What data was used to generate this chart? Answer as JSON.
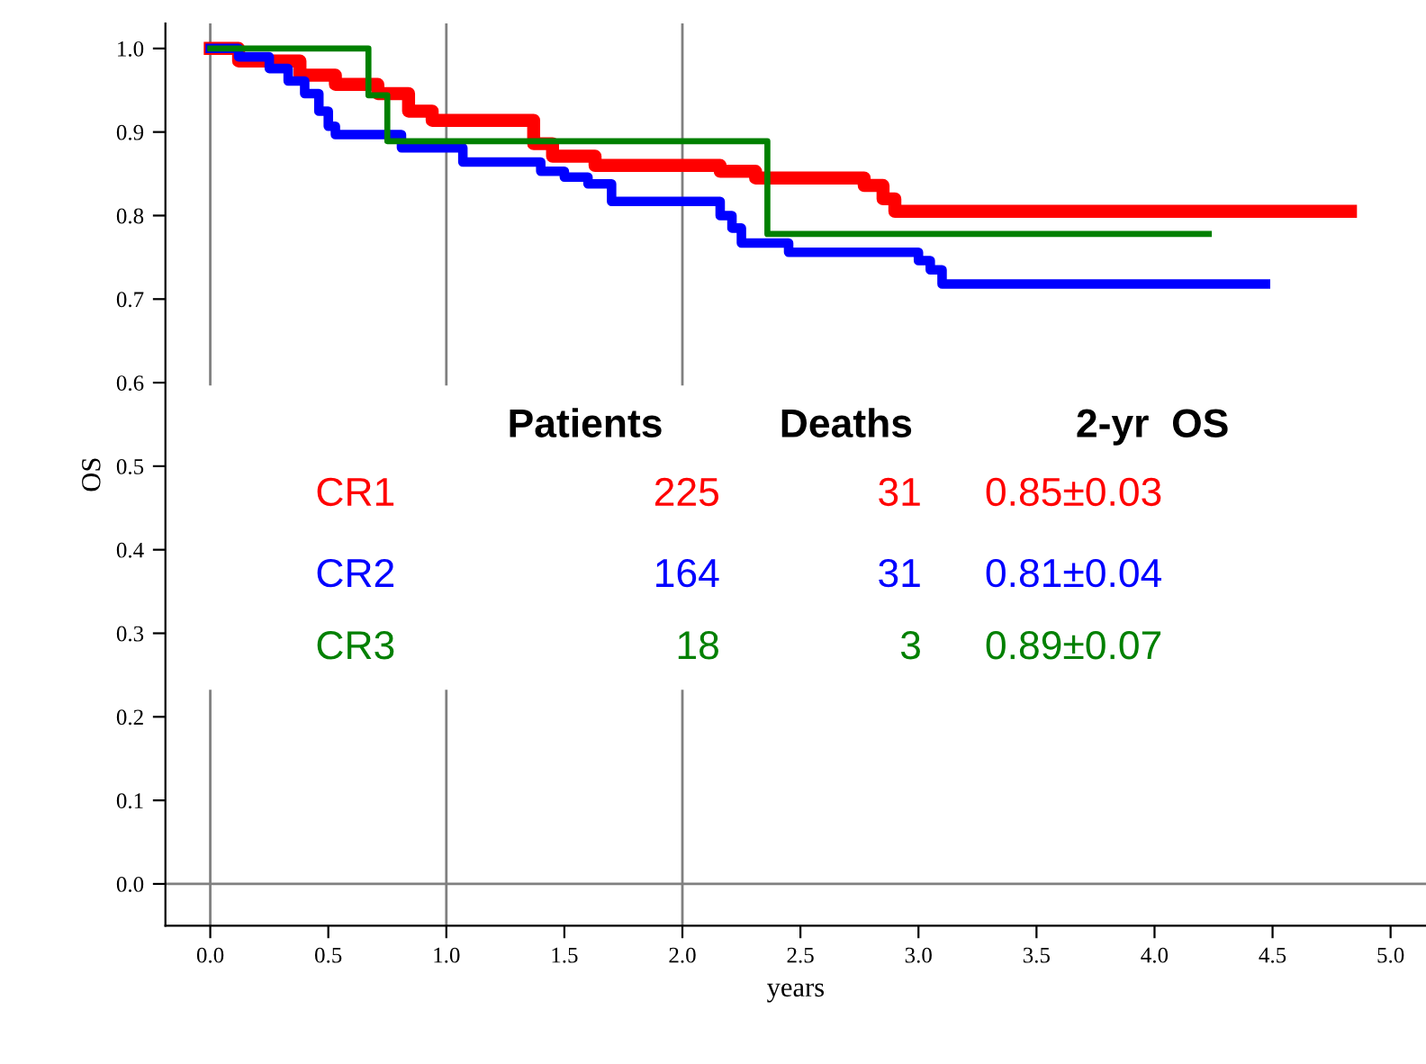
{
  "chart_data": {
    "type": "step",
    "xlabel": "years",
    "ylabel": "OS",
    "xlim": [
      -0.19,
      5.15
    ],
    "ylim": [
      -0.05,
      1.03
    ],
    "xticks": [
      {
        "value": 0,
        "label": "0.0"
      },
      {
        "value": 0.5,
        "label": "0.5"
      },
      {
        "value": 1,
        "label": "1.0"
      },
      {
        "value": 1.5,
        "label": "1.5"
      },
      {
        "value": 2,
        "label": "2.0"
      },
      {
        "value": 2.5,
        "label": "2.5"
      },
      {
        "value": 3,
        "label": "3.0"
      },
      {
        "value": 3.5,
        "label": "3.5"
      },
      {
        "value": 4,
        "label": "4.0"
      },
      {
        "value": 4.5,
        "label": "4.5"
      },
      {
        "value": 5,
        "label": "5.0"
      }
    ],
    "yticks": [
      {
        "value": 0,
        "label": "0.0"
      },
      {
        "value": 0.1,
        "label": "0.1"
      },
      {
        "value": 0.2,
        "label": "0.2"
      },
      {
        "value": 0.3,
        "label": "0.3"
      },
      {
        "value": 0.4,
        "label": "0.4"
      },
      {
        "value": 0.5,
        "label": "0.5"
      },
      {
        "value": 0.6,
        "label": "0.6"
      },
      {
        "value": 0.7,
        "label": "0.7"
      },
      {
        "value": 0.8,
        "label": "0.8"
      },
      {
        "value": 0.9,
        "label": "0.9"
      },
      {
        "value": 1,
        "label": "1.0"
      }
    ],
    "grid": false,
    "legend": false,
    "ref_lines": [
      {
        "axis": "x",
        "value": 0,
        "color": "#808080"
      },
      {
        "axis": "x",
        "value": 1,
        "color": "#808080"
      },
      {
        "axis": "x",
        "value": 2,
        "color": "#808080"
      },
      {
        "axis": "y",
        "value": 0,
        "color": "#808080"
      }
    ],
    "series": [
      {
        "name": "CR1",
        "color": "#ff0000",
        "x": [
          0,
          0.12,
          0.38,
          0.53,
          0.71,
          0.84,
          0.94,
          1.37,
          1.45,
          1.63,
          2.16,
          2.31,
          2.77,
          2.85,
          2.9,
          4.83
        ],
        "values": [
          1.0,
          0.985,
          0.968,
          0.957,
          0.946,
          0.925,
          0.914,
          0.886,
          0.871,
          0.86,
          0.853,
          0.845,
          0.836,
          0.82,
          0.805,
          0.805
        ]
      },
      {
        "name": "CR2",
        "color": "#0000ff",
        "x": [
          0,
          0.12,
          0.25,
          0.33,
          0.4,
          0.46,
          0.5,
          0.53,
          0.81,
          1.07,
          1.4,
          1.5,
          1.6,
          1.7,
          2.16,
          2.21,
          2.25,
          2.45,
          3.0,
          3.05,
          3.1,
          4.47
        ],
        "values": [
          1.0,
          0.99,
          0.976,
          0.961,
          0.946,
          0.925,
          0.907,
          0.897,
          0.881,
          0.864,
          0.853,
          0.846,
          0.838,
          0.817,
          0.8,
          0.785,
          0.767,
          0.756,
          0.746,
          0.735,
          0.718,
          0.718
        ]
      },
      {
        "name": "CR3",
        "color": "#008000",
        "x": [
          0,
          0.67,
          0.75,
          2.36,
          4.23
        ],
        "values": [
          1.0,
          0.944,
          0.889,
          0.778,
          0.778
        ]
      }
    ],
    "annotations": [
      "Patients",
      "Deaths",
      "2-yr  OS",
      "225",
      "31",
      "0.85±0.03",
      "164",
      "31",
      "0.81±0.04",
      "18",
      "3",
      "0.89±0.07"
    ]
  }
}
